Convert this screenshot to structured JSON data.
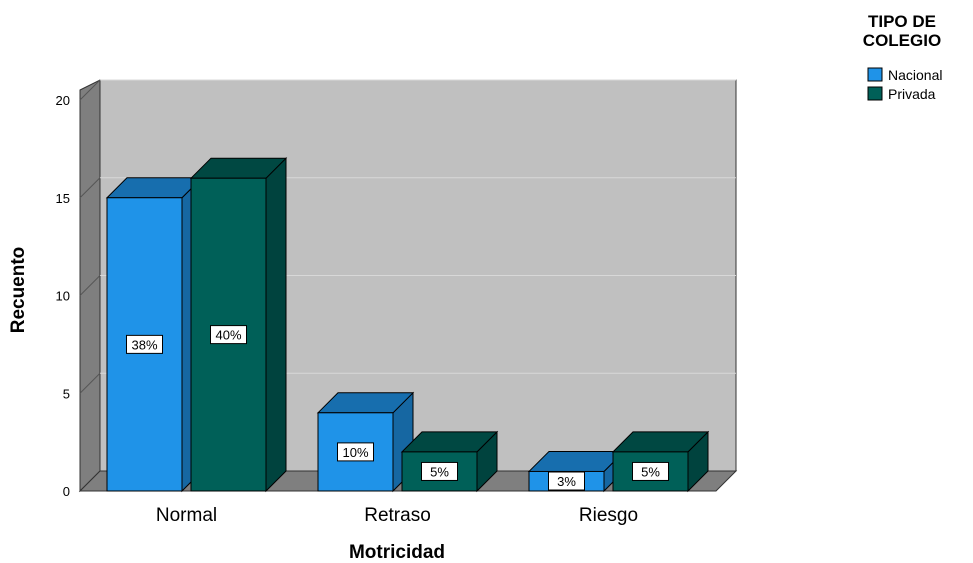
{
  "chart_data": {
    "type": "bar",
    "categories": [
      "Normal",
      "Retraso",
      "Riesgo"
    ],
    "series": [
      {
        "name": "Nacional",
        "values": [
          15,
          4,
          1
        ],
        "labels": [
          "38%",
          "10%",
          "3%"
        ]
      },
      {
        "name": "Privada",
        "values": [
          16,
          2,
          2
        ],
        "labels": [
          "40%",
          "5%",
          "5%"
        ]
      }
    ],
    "xlabel": "Motricidad",
    "ylabel": "Recuento",
    "ylim": [
      0,
      20
    ],
    "yticks": [
      0,
      5,
      10,
      15,
      20
    ],
    "legend": {
      "title": "TIPO DE COLEGIO",
      "placement": "top-right"
    },
    "colors": {
      "series": [
        "#1f93e8",
        "#006058"
      ],
      "floor": "#7f7f7f",
      "wall": "#c0c0c0"
    },
    "grid": true,
    "style": "3d"
  }
}
